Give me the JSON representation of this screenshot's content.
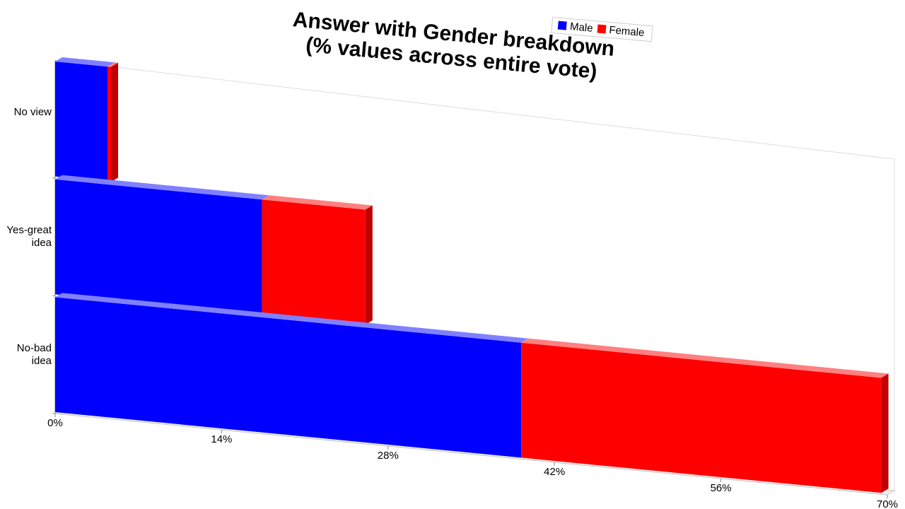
{
  "chart_data": {
    "type": "bar3d_stacked_horizontal",
    "title": "Answer with Gender breakdown\n(% values across entire vote)",
    "categories": [
      "No view",
      "Yes-great idea",
      "No-bad idea"
    ],
    "series": [
      {
        "name": "Male",
        "color": "#0000ff",
        "values": [
          4.4,
          17.4,
          39.2
        ]
      },
      {
        "name": "Female",
        "color": "#ff0000",
        "values": [
          0.3,
          8.7,
          30.3
        ]
      }
    ],
    "xlim": [
      0,
      70
    ],
    "xticks": [
      {
        "value": 0,
        "label": "0%"
      },
      {
        "value": 14,
        "label": "14%"
      },
      {
        "value": 28,
        "label": "28%"
      },
      {
        "value": 42,
        "label": "42%"
      },
      {
        "value": 56,
        "label": "56%"
      },
      {
        "value": 70,
        "label": "70%"
      }
    ]
  }
}
